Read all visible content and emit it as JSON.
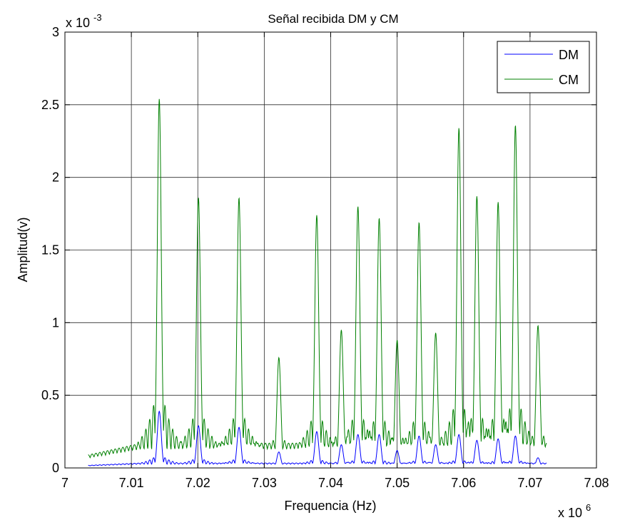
{
  "chart_data": {
    "type": "line",
    "title": "Señal recibida DM y CM",
    "xlabel": "Frequencia (Hz)",
    "ylabel": "Amplitud(v)",
    "x_multiplier": "x 10",
    "x_exponent": "6",
    "y_multiplier": "x 10",
    "y_exponent": "-3",
    "xlim": [
      7.0,
      7.08
    ],
    "ylim": [
      0,
      3
    ],
    "x_ticks": [
      "7",
      "7.01",
      "7.02",
      "7.03",
      "7.04",
      "7.05",
      "7.06",
      "7.07",
      "7.08"
    ],
    "y_ticks": [
      "0",
      "0.5",
      "1",
      "1.5",
      "2",
      "2.5",
      "3"
    ],
    "grid": true,
    "legend_position": "top-right",
    "colors": {
      "DM": "#0000ff",
      "CM": "#008000"
    },
    "series": [
      {
        "name": "DM",
        "color": "#0000ff",
        "base_start": 0.018,
        "peaks": [
          [
            7.0142,
            0.39
          ],
          [
            7.0201,
            0.29
          ],
          [
            7.0262,
            0.28
          ],
          [
            7.0322,
            0.11
          ],
          [
            7.0379,
            0.25
          ],
          [
            7.0416,
            0.16
          ],
          [
            7.0441,
            0.23
          ],
          [
            7.0473,
            0.23
          ],
          [
            7.05,
            0.12
          ],
          [
            7.0533,
            0.22
          ],
          [
            7.0558,
            0.16
          ],
          [
            7.0593,
            0.23
          ],
          [
            7.062,
            0.19
          ],
          [
            7.0652,
            0.2
          ],
          [
            7.0678,
            0.22
          ],
          [
            7.0712,
            0.07
          ]
        ]
      },
      {
        "name": "CM",
        "color": "#008000",
        "base_start": 0.09,
        "peaks": [
          [
            7.0142,
            2.54
          ],
          [
            7.0201,
            1.86
          ],
          [
            7.0262,
            1.86
          ],
          [
            7.0322,
            0.76
          ],
          [
            7.0379,
            1.74
          ],
          [
            7.0416,
            0.95
          ],
          [
            7.0441,
            1.8
          ],
          [
            7.0473,
            1.72
          ],
          [
            7.05,
            0.88
          ],
          [
            7.0533,
            1.69
          ],
          [
            7.0558,
            0.93
          ],
          [
            7.0593,
            2.34
          ],
          [
            7.062,
            1.87
          ],
          [
            7.0652,
            1.83
          ],
          [
            7.0678,
            2.36
          ],
          [
            7.0712,
            0.98
          ]
        ]
      }
    ],
    "x_data_range": [
      7.0035,
      7.0725
    ]
  }
}
